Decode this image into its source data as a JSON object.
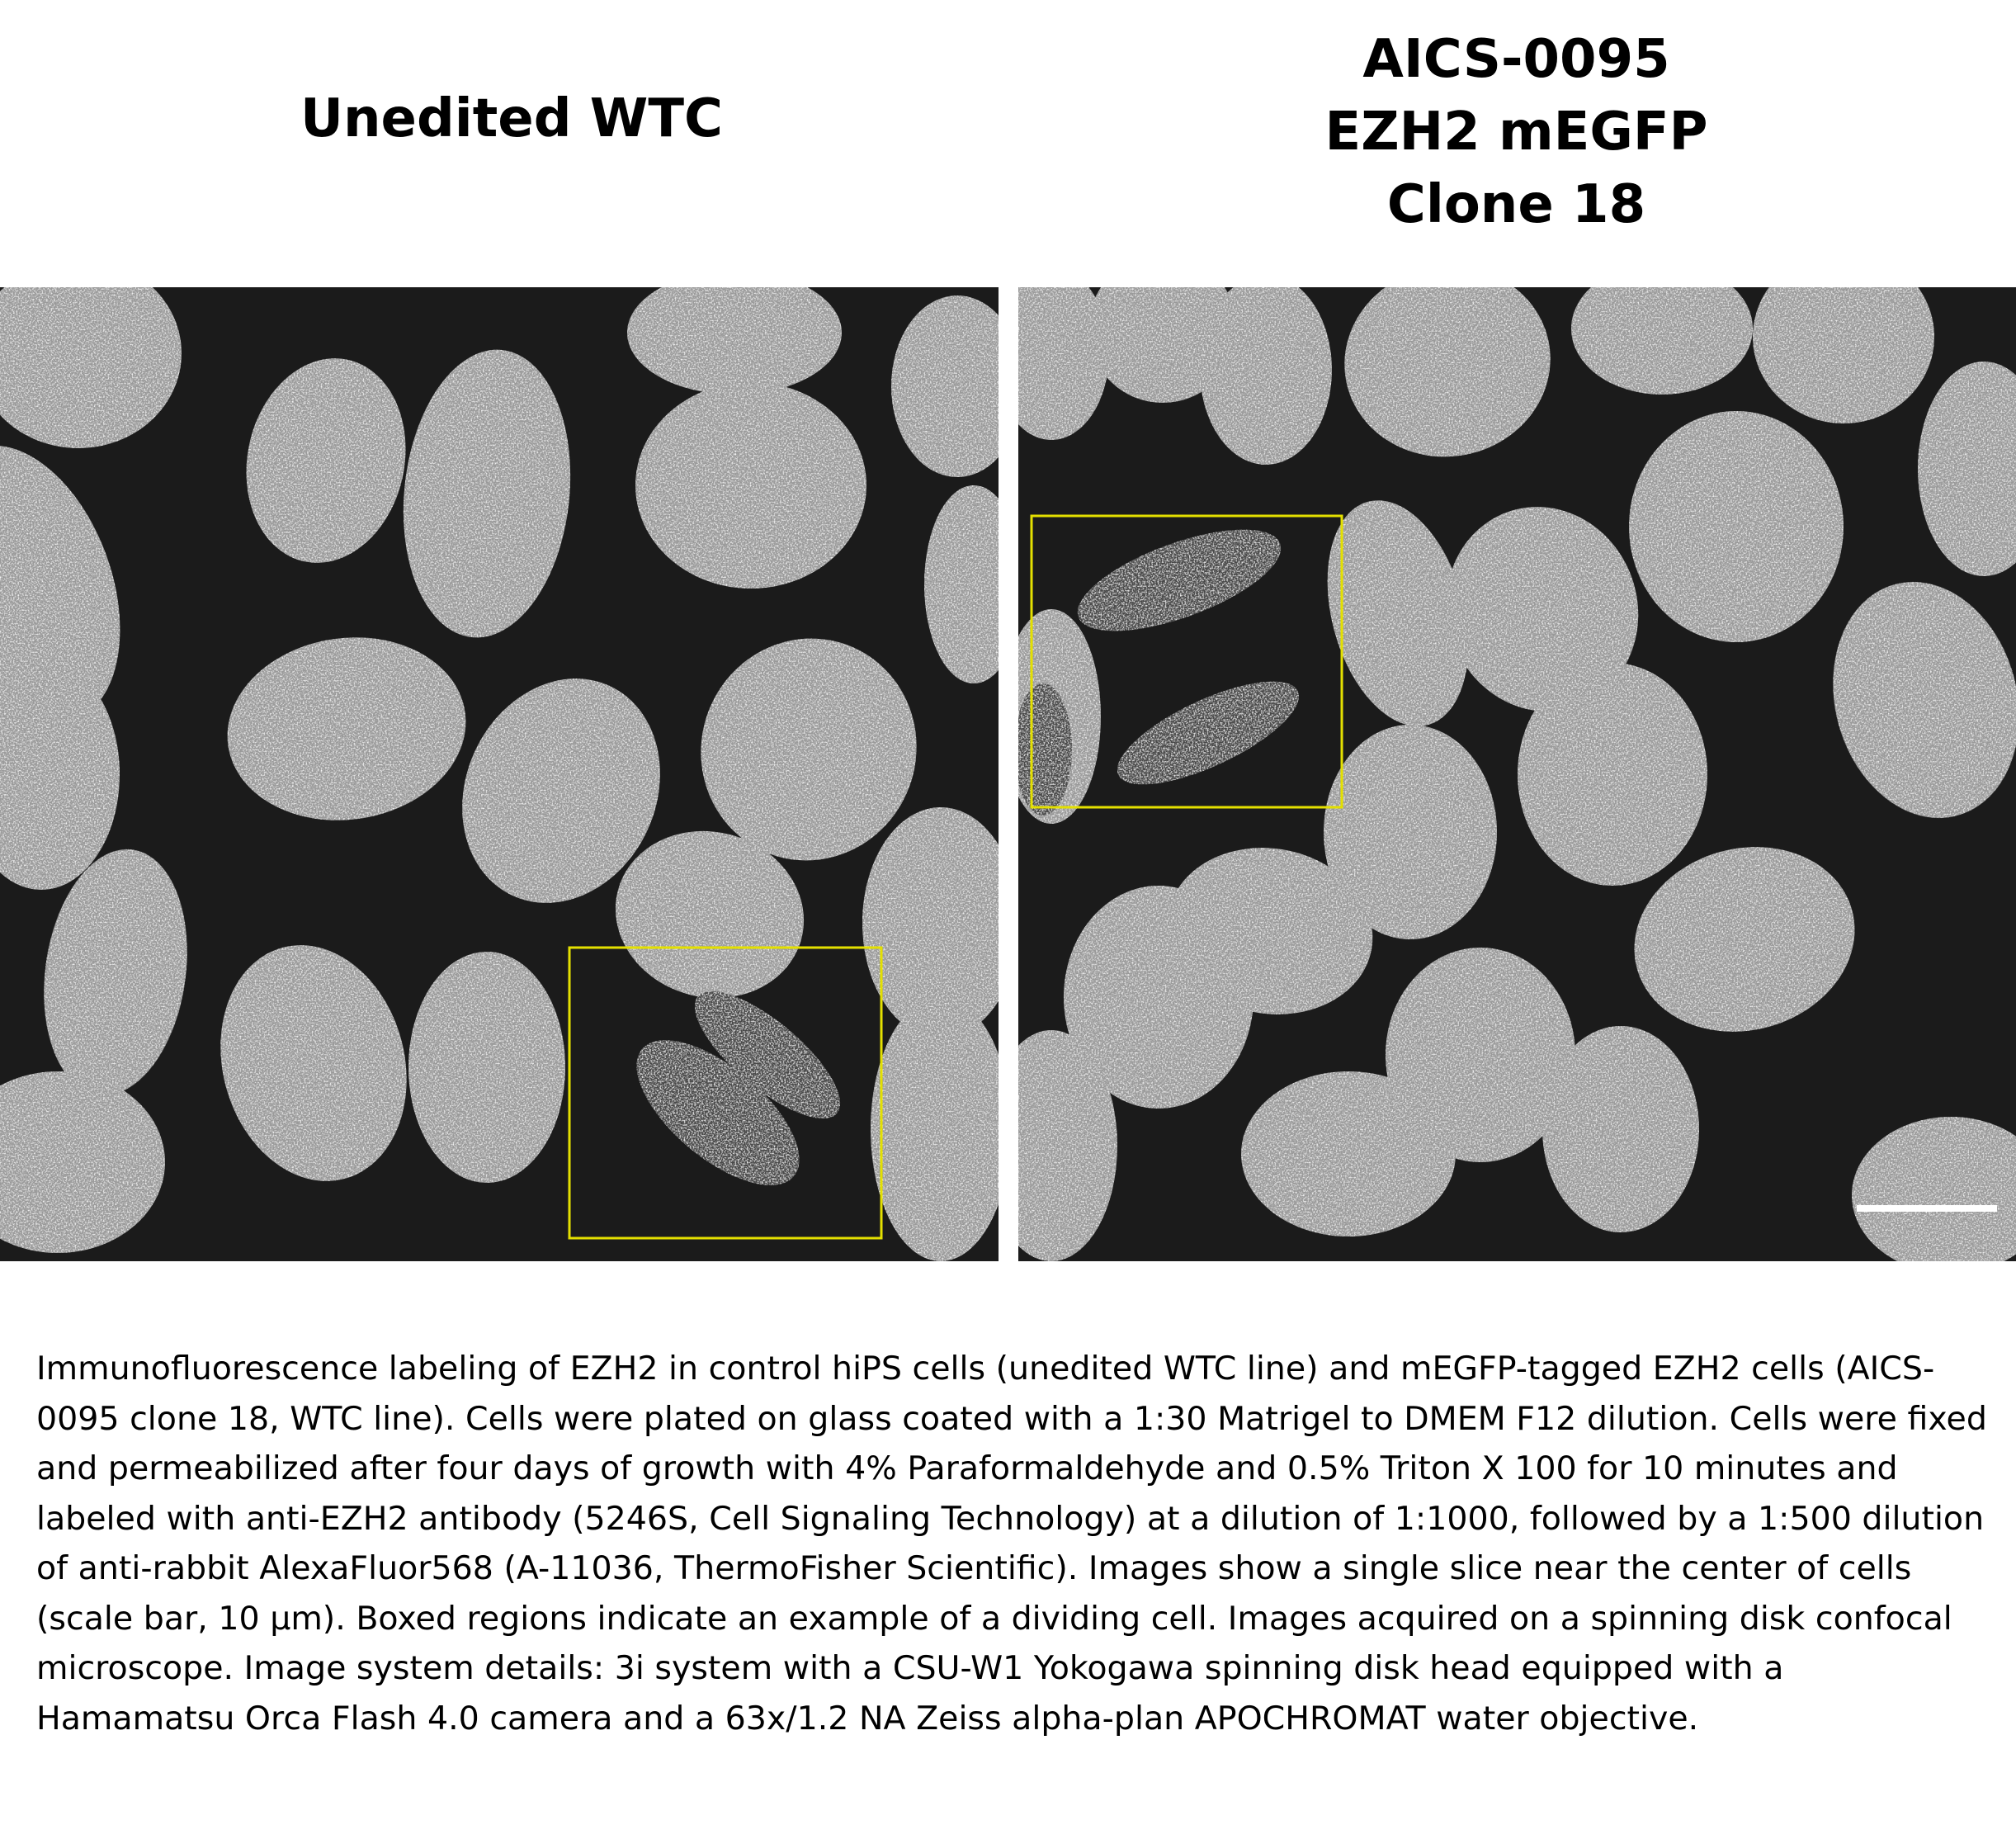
{
  "panels": [
    {
      "title_lines": [
        "Unedited WTC"
      ],
      "box_color": "#e4e000"
    },
    {
      "title_lines": [
        "AICS-0095",
        "EZH2 mEGFP",
        "Clone 18"
      ],
      "box_color": "#e4e000",
      "scale_bar": {
        "length_um": 10
      }
    }
  ],
  "caption": "Immunofluorescence labeling of EZH2 in control hiPS cells (unedited WTC line) and mEGFP-tagged EZH2 cells (AICS-0095 clone 18, WTC line).  Cells were plated on glass coated with a 1:30 Matrigel to DMEM F12 dilution. Cells were fixed and permeabilized after four days of growth with 4% Paraformaldehyde and 0.5% Triton X 100 for 10 minutes and labeled with anti-EZH2 antibody (5246S, Cell Signaling Technology) at a dilution of 1:1000, followed by a 1:500 dilution of anti-rabbit AlexaFluor568 (A-11036, ThermoFisher Scientific). Images show a single slice near the center of cells (scale bar, 10 µm). Boxed regions indicate an example of a dividing cell. Images acquired on a spinning disk confocal microscope.  Image system details: 3i system with a CSU-W1 Yokogawa spinning disk head equipped with a Hamamatsu Orca Flash 4.0 camera and a 63x/1.2 NA Zeiss alpha-plan APOCHROMAT water objective.",
  "colors": {
    "background": "#1b1b1b",
    "nucleus": "#9a9a9a"
  }
}
